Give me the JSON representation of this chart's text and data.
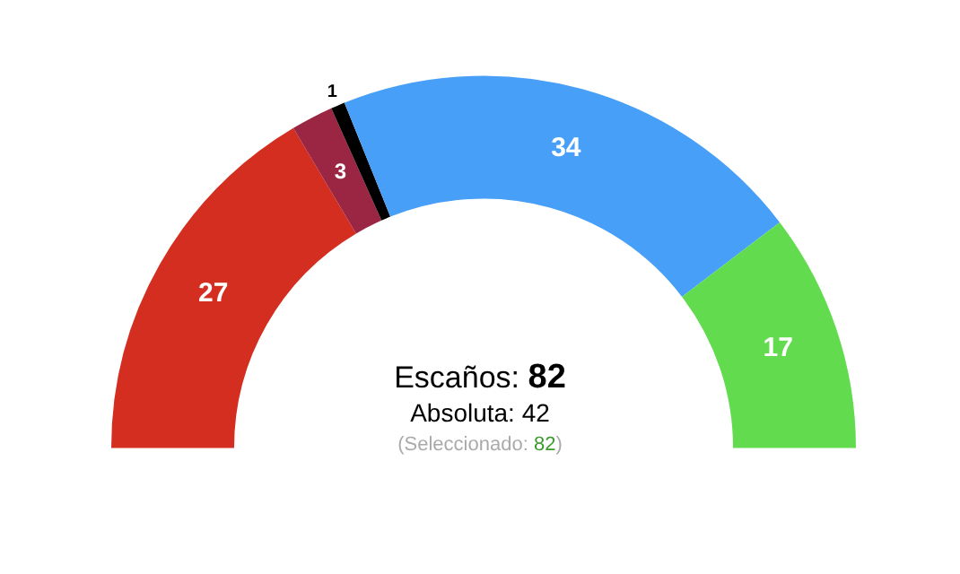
{
  "chart_data": {
    "type": "donut",
    "categories": [
      null,
      null,
      null,
      null,
      null
    ],
    "values": [
      27,
      3,
      1,
      34,
      17
    ],
    "colors": [
      "#d42e21",
      "#9b2643",
      "#000000",
      "#479ff8",
      "#62dc4e"
    ],
    "data_labels": true,
    "legend": false,
    "annotations": [
      "Escaños: 82",
      "Absoluta: 42",
      "(Seleccionado: 82)"
    ]
  }
}
